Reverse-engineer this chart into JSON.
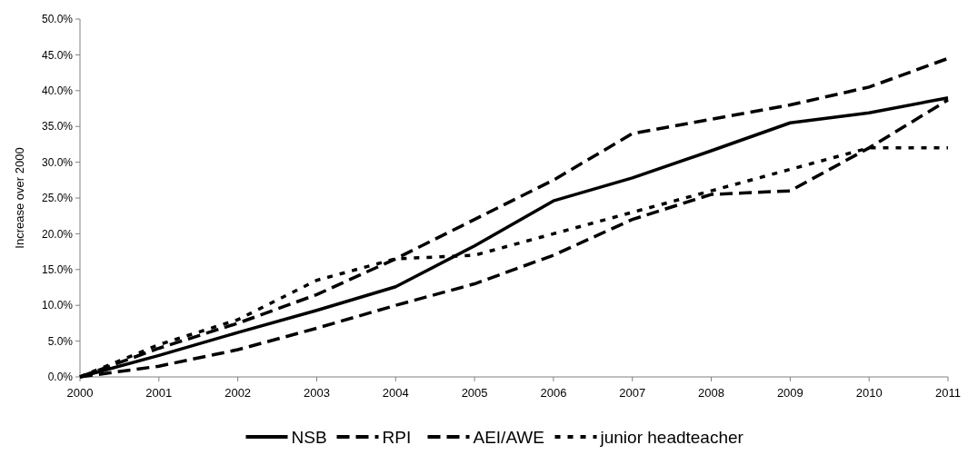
{
  "chart_data": {
    "type": "line",
    "ylabel": "Increase over 2000",
    "x": [
      2000,
      2001,
      2002,
      2003,
      2004,
      2005,
      2006,
      2007,
      2008,
      2009,
      2010,
      2011
    ],
    "xlim": [
      2000,
      2011
    ],
    "xticks": [
      2000,
      2001,
      2002,
      2003,
      2004,
      2005,
      2006,
      2007,
      2008,
      2009,
      2010,
      2011
    ],
    "ylim": [
      0,
      50
    ],
    "yticks": [
      {
        "value": 0,
        "label": "0.0%"
      },
      {
        "value": 5,
        "label": "5.0%"
      },
      {
        "value": 10,
        "label": "10.0%"
      },
      {
        "value": 15,
        "label": "15.0%"
      },
      {
        "value": 20,
        "label": "20.0%"
      },
      {
        "value": 25,
        "label": "25.0%"
      },
      {
        "value": 30,
        "label": "30.0%"
      },
      {
        "value": 35,
        "label": "35.0%"
      },
      {
        "value": 40,
        "label": "40.0%"
      },
      {
        "value": 45,
        "label": "45.0%"
      },
      {
        "value": 50,
        "label": "50.0%"
      }
    ],
    "legend": "bottom",
    "grid": false,
    "series": [
      {
        "name": "NSB",
        "color": "#000000",
        "line_style": "solid",
        "values": [
          0,
          3,
          6.2,
          9.3,
          12.6,
          18.3,
          24.6,
          27.8,
          31.6,
          35.5,
          36.9,
          39
        ]
      },
      {
        "name": "RPI",
        "color": "#000000",
        "line_style": "dashed",
        "values": [
          0,
          4,
          7.5,
          11.5,
          16.5,
          22,
          27.5,
          34,
          36,
          38,
          40.5,
          44.5
        ]
      },
      {
        "name": "AEI/AWE",
        "color": "#000000",
        "line_style": "dashed",
        "values": [
          0,
          1.5,
          3.8,
          6.8,
          10,
          13,
          17,
          22,
          25.5,
          26,
          32,
          38.7
        ]
      },
      {
        "name": "junior headteacher",
        "color": "#000000",
        "line_style": "dotted",
        "values": [
          0,
          4.5,
          8,
          13.5,
          16.5,
          17,
          20,
          23,
          26,
          29,
          32,
          32
        ]
      }
    ]
  }
}
